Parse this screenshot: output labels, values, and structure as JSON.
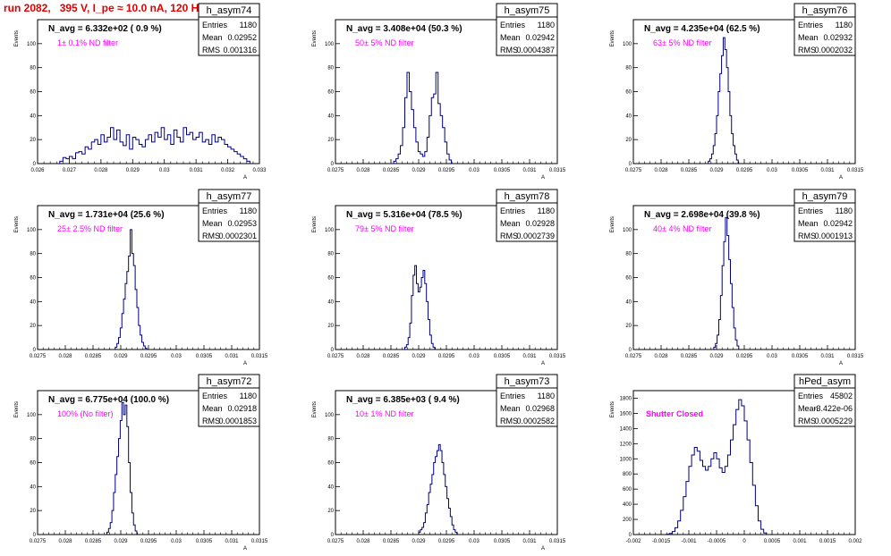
{
  "run_title": "run 2082,   395 V, I_pe ≈ 10.0 nA, 120 Hz",
  "colors": {
    "title": "#e00000",
    "annotation": "#ff00ff",
    "histogram": "#000080",
    "axis": "#000000"
  },
  "chart_data": [
    {
      "type": "bar",
      "histogram": true,
      "name": "h_asym74",
      "stats": {
        "entries_label": "Entries",
        "entries": "1180",
        "mean_label": "Mean",
        "mean": "0.02952",
        "rms_label": "RMS",
        "rms": "0.001316"
      },
      "navg": "N_avg = 6.332e+02 ( 0.9 %)",
      "filter": "1± 0.1% ND filter",
      "ylabel": "Events",
      "xlabel": "A",
      "xlim": [
        0.026,
        0.033
      ],
      "ylim": [
        0,
        120
      ],
      "xticks": [
        0.026,
        0.027,
        0.028,
        0.029,
        0.03,
        0.031,
        0.032,
        0.033
      ],
      "xticklabels": [
        "0.026",
        "0.027",
        "0.028",
        "0.029",
        "0.03",
        "0.031",
        "0.032",
        "0.033"
      ],
      "yticks": [
        0,
        20,
        40,
        60,
        80,
        100
      ],
      "yticklabels": [
        "0",
        "20",
        "40",
        "60",
        "80",
        "100"
      ],
      "bins": {
        "lo": 0.0267,
        "width": 0.0001,
        "values": [
          2,
          5,
          4,
          6,
          4,
          9,
          10,
          8,
          14,
          12,
          18,
          20,
          16,
          24,
          18,
          22,
          30,
          20,
          28,
          18,
          15,
          24,
          12,
          22,
          20,
          16,
          14,
          20,
          24,
          18,
          26,
          22,
          30,
          20,
          24,
          16,
          28,
          22,
          18,
          30,
          24,
          26,
          20,
          22,
          26,
          18,
          20,
          16,
          24,
          18,
          22,
          20,
          16,
          14,
          12,
          10,
          8,
          6,
          4,
          2
        ]
      }
    },
    {
      "type": "bar",
      "histogram": true,
      "name": "h_asym75",
      "stats": {
        "entries_label": "Entries",
        "entries": "1180",
        "mean_label": "Mean",
        "mean": "0.02942",
        "rms_label": "RMS",
        "rms": "0.0004387"
      },
      "navg": "N_avg = 3.408e+04 (50.3 %)",
      "filter": "50± 5% ND filter",
      "ylabel": "Events",
      "xlabel": "A",
      "xlim": [
        0.0275,
        0.0315
      ],
      "ylim": [
        0,
        120
      ],
      "xticks": [
        0.0275,
        0.028,
        0.0285,
        0.029,
        0.0295,
        0.03,
        0.0305,
        0.031,
        0.0315
      ],
      "xticklabels": [
        "0.0275",
        "0.028",
        "0.0285",
        "0.029",
        "0.0295",
        "0.03",
        "0.0305",
        "0.031",
        "0.0315"
      ],
      "yticks": [
        0,
        20,
        40,
        60,
        80,
        100
      ],
      "yticklabels": [
        "0",
        "20",
        "40",
        "60",
        "80",
        "100"
      ],
      "bins": {
        "lo": 0.02855,
        "width": 4e-05,
        "values": [
          2,
          4,
          8,
          15,
          30,
          55,
          76,
          60,
          45,
          30,
          18,
          10,
          8,
          6,
          10,
          22,
          40,
          55,
          58,
          76,
          50,
          40,
          30,
          18,
          8,
          3
        ]
      }
    },
    {
      "type": "bar",
      "histogram": true,
      "name": "h_asym76",
      "stats": {
        "entries_label": "Entries",
        "entries": "1180",
        "mean_label": "Mean",
        "mean": "0.02932",
        "rms_label": "RMS",
        "rms": "0.0002032"
      },
      "navg": "N_avg = 4.235e+04 (62.5 %)",
      "filter": "63± 5% ND filter",
      "ylabel": "Events",
      "xlabel": "A",
      "xlim": [
        0.0275,
        0.0315
      ],
      "ylim": [
        0,
        120
      ],
      "xticks": [
        0.0275,
        0.028,
        0.0285,
        0.029,
        0.0295,
        0.03,
        0.0305,
        0.031,
        0.0315
      ],
      "xticklabels": [
        "0.0275",
        "0.028",
        "0.0285",
        "0.029",
        "0.0295",
        "0.03",
        "0.0305",
        "0.031",
        "0.0315"
      ],
      "yticks": [
        0,
        20,
        40,
        60,
        80,
        100
      ],
      "yticklabels": [
        "0",
        "20",
        "40",
        "60",
        "80",
        "100"
      ],
      "bins": {
        "lo": 0.02885,
        "width": 3e-05,
        "values": [
          2,
          4,
          8,
          15,
          25,
          40,
          60,
          75,
          90,
          105,
          95,
          80,
          60,
          40,
          25,
          15,
          8,
          3
        ]
      }
    },
    {
      "type": "bar",
      "histogram": true,
      "name": "h_asym77",
      "stats": {
        "entries_label": "Entries",
        "entries": "1180",
        "mean_label": "Mean",
        "mean": "0.02953",
        "rms_label": "RMS",
        "rms": "0.0002301"
      },
      "navg": "N_avg = 1.731e+04 (25.6 %)",
      "filter": "25± 2.5% ND filter",
      "ylabel": "Events",
      "xlabel": "A",
      "xlim": [
        0.0275,
        0.0315
      ],
      "ylim": [
        0,
        120
      ],
      "xticks": [
        0.0275,
        0.028,
        0.0285,
        0.029,
        0.0295,
        0.03,
        0.0305,
        0.031,
        0.0315
      ],
      "xticklabels": [
        "0.0275",
        "0.028",
        "0.0285",
        "0.029",
        "0.0295",
        "0.03",
        "0.0305",
        "0.031",
        "0.0315"
      ],
      "yticks": [
        0,
        20,
        40,
        60,
        80,
        100
      ],
      "yticklabels": [
        "0",
        "20",
        "40",
        "60",
        "80",
        "100"
      ],
      "bins": {
        "lo": 0.0289,
        "width": 3e-05,
        "values": [
          2,
          5,
          10,
          18,
          30,
          42,
          55,
          65,
          78,
          100,
          80,
          70,
          50,
          35,
          20,
          12,
          6,
          3,
          1
        ]
      }
    },
    {
      "type": "bar",
      "histogram": true,
      "name": "h_asym78",
      "stats": {
        "entries_label": "Entries",
        "entries": "1180",
        "mean_label": "Mean",
        "mean": "0.02928",
        "rms_label": "RMS",
        "rms": "0.0002739"
      },
      "navg": "N_avg = 5.316e+04 (78.5 %)",
      "filter": "79± 5% ND filter",
      "ylabel": "Events",
      "xlabel": "A",
      "xlim": [
        0.0275,
        0.0315
      ],
      "ylim": [
        0,
        120
      ],
      "xticks": [
        0.0275,
        0.028,
        0.0285,
        0.029,
        0.0295,
        0.03,
        0.0305,
        0.031,
        0.0315
      ],
      "xticklabels": [
        "0.0275",
        "0.028",
        "0.0285",
        "0.029",
        "0.0295",
        "0.03",
        "0.0305",
        "0.031",
        "0.0315"
      ],
      "yticks": [
        0,
        20,
        40,
        60,
        80,
        100
      ],
      "yticklabels": [
        "0",
        "20",
        "40",
        "60",
        "80",
        "100"
      ],
      "bins": {
        "lo": 0.02875,
        "width": 3e-05,
        "values": [
          2,
          4,
          10,
          22,
          45,
          62,
          70,
          55,
          48,
          52,
          60,
          66,
          55,
          40,
          25,
          12,
          5,
          2
        ]
      }
    },
    {
      "type": "bar",
      "histogram": true,
      "name": "h_asym79",
      "stats": {
        "entries_label": "Entries",
        "entries": "1180",
        "mean_label": "Mean",
        "mean": "0.02942",
        "rms_label": "RMS",
        "rms": "0.0001913"
      },
      "navg": "N_avg = 2.698e+04 (39.8 %)",
      "filter": "40± 4% ND filter",
      "ylabel": "Events",
      "xlabel": "A",
      "xlim": [
        0.0275,
        0.0315
      ],
      "ylim": [
        0,
        120
      ],
      "xticks": [
        0.0275,
        0.028,
        0.0285,
        0.029,
        0.0295,
        0.03,
        0.0305,
        0.031,
        0.0315
      ],
      "xticklabels": [
        "0.0275",
        "0.028",
        "0.0285",
        "0.029",
        "0.0295",
        "0.03",
        "0.0305",
        "0.031",
        "0.0315"
      ],
      "yticks": [
        0,
        20,
        40,
        60,
        80,
        100
      ],
      "yticklabels": [
        "0",
        "20",
        "40",
        "60",
        "80",
        "100"
      ],
      "bins": {
        "lo": 0.02895,
        "width": 3e-05,
        "values": [
          2,
          5,
          12,
          25,
          45,
          70,
          90,
          110,
          95,
          75,
          55,
          35,
          18,
          8,
          3
        ]
      }
    },
    {
      "type": "bar",
      "histogram": true,
      "name": "h_asym72",
      "stats": {
        "entries_label": "Entries",
        "entries": "1180",
        "mean_label": "Mean",
        "mean": "0.02918",
        "rms_label": "RMS",
        "rms": "0.0001853"
      },
      "navg": "N_avg = 6.775e+04 (100.0 %)",
      "filter": "100% (No filter)",
      "ylabel": "Events",
      "xlabel": "A",
      "xlim": [
        0.0275,
        0.0315
      ],
      "ylim": [
        0,
        120
      ],
      "xticks": [
        0.0275,
        0.028,
        0.0285,
        0.029,
        0.0295,
        0.03,
        0.0305,
        0.031,
        0.0315
      ],
      "xticklabels": [
        "0.0275",
        "0.028",
        "0.0285",
        "0.029",
        "0.0295",
        "0.03",
        "0.0305",
        "0.031",
        "0.0315"
      ],
      "yticks": [
        0,
        20,
        40,
        60,
        80,
        100
      ],
      "yticklabels": [
        "0",
        "20",
        "40",
        "60",
        "80",
        "100"
      ],
      "bins": {
        "lo": 0.02875,
        "width": 3e-05,
        "values": [
          2,
          5,
          10,
          20,
          35,
          50,
          65,
          80,
          95,
          110,
          100,
          108,
          90,
          60,
          35,
          18,
          8,
          3
        ]
      }
    },
    {
      "type": "bar",
      "histogram": true,
      "name": "h_asym73",
      "stats": {
        "entries_label": "Entries",
        "entries": "1180",
        "mean_label": "Mean",
        "mean": "0.02968",
        "rms_label": "RMS",
        "rms": "0.0002582"
      },
      "navg": "N_avg = 6.385e+03 ( 9.4 %)",
      "filter": "10± 1% ND filter",
      "ylabel": "Events",
      "xlabel": "A",
      "xlim": [
        0.0275,
        0.0315
      ],
      "ylim": [
        0,
        120
      ],
      "xticks": [
        0.0275,
        0.028,
        0.0285,
        0.029,
        0.0295,
        0.03,
        0.0305,
        0.031,
        0.0315
      ],
      "xticklabels": [
        "0.0275",
        "0.028",
        "0.0285",
        "0.029",
        "0.0295",
        "0.03",
        "0.0305",
        "0.031",
        "0.0315"
      ],
      "yticks": [
        0,
        20,
        40,
        60,
        80,
        100
      ],
      "yticklabels": [
        "0",
        "20",
        "40",
        "60",
        "80",
        "100"
      ],
      "bins": {
        "lo": 0.029,
        "width": 3e-05,
        "values": [
          2,
          4,
          6,
          10,
          18,
          25,
          35,
          42,
          50,
          60,
          65,
          70,
          75,
          70,
          60,
          50,
          40,
          30,
          22,
          15,
          8,
          4,
          2
        ]
      }
    },
    {
      "type": "bar",
      "histogram": true,
      "name": "hPed_asym",
      "stats": {
        "entries_label": "Entries",
        "entries": "45802",
        "mean_label": "Mean",
        "mean": "-3.422e-06",
        "rms_label": "RMS",
        "rms": "0.0005229"
      },
      "navg": "",
      "filter": "Shutter Closed",
      "ylabel": "Events",
      "xlabel": "",
      "xlim": [
        -0.002,
        0.002
      ],
      "ylim": [
        0,
        1900
      ],
      "xticks": [
        -0.002,
        -0.0015,
        -0.001,
        -0.0005,
        0,
        0.0005,
        0.001,
        0.0015,
        0.002
      ],
      "xticklabels": [
        "-0.002",
        "-0.0015",
        "-0.001",
        "-0.0005",
        "0",
        "0.0005",
        "0.001",
        "0.0015",
        "0.002"
      ],
      "yticks": [
        0,
        200,
        400,
        600,
        800,
        1000,
        1200,
        1400,
        1600,
        1800
      ],
      "yticklabels": [
        "0",
        "200",
        "400",
        "600",
        "800",
        "1000",
        "1200",
        "1400",
        "1600",
        "1800"
      ],
      "bins": {
        "lo": -0.0014,
        "width": 5e-05,
        "values": [
          5,
          15,
          40,
          90,
          180,
          320,
          500,
          700,
          900,
          1050,
          1150,
          1100,
          980,
          900,
          850,
          900,
          1000,
          1080,
          1000,
          880,
          820,
          900,
          1050,
          1250,
          1450,
          1650,
          1780,
          1700,
          1500,
          1250,
          950,
          650,
          380,
          180,
          70,
          20
        ]
      }
    }
  ]
}
